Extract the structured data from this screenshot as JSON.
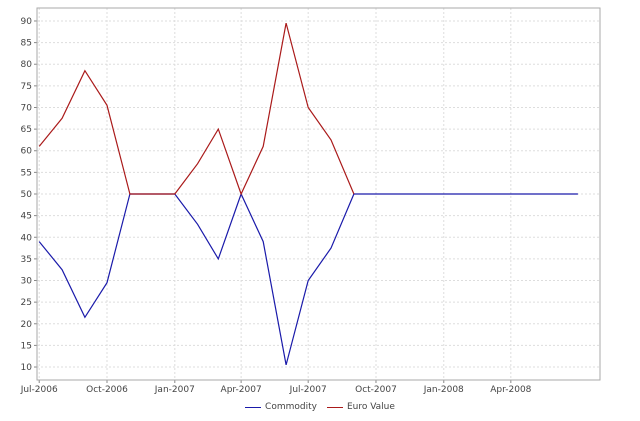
{
  "chart_data": {
    "type": "line",
    "title": "",
    "xlabel": "",
    "ylabel": "",
    "x_ticks": [
      "Jul-2006",
      "Oct-2006",
      "Jan-2007",
      "Apr-2007",
      "Jul-2007",
      "Oct-2007",
      "Jan-2008",
      "Apr-2008"
    ],
    "y_ticks": [
      10,
      15,
      20,
      25,
      30,
      35,
      40,
      45,
      50,
      55,
      60,
      65,
      70,
      75,
      80,
      85,
      90
    ],
    "xlim": [
      "2006-06-28",
      "2008-07-31"
    ],
    "ylim": [
      7,
      93
    ],
    "grid": true,
    "legend_position": "bottom",
    "x": [
      "2006-07-01",
      "2006-08-01",
      "2006-09-01",
      "2006-10-01",
      "2006-11-01",
      "2006-12-01",
      "2007-01-01",
      "2007-02-01",
      "2007-03-01",
      "2007-04-01",
      "2007-05-01",
      "2007-06-01",
      "2007-07-01",
      "2007-08-01",
      "2007-09-01",
      "2007-10-01",
      "2007-11-01",
      "2007-12-01",
      "2008-01-01",
      "2008-02-01",
      "2008-03-01",
      "2008-04-01",
      "2008-05-01",
      "2008-06-01",
      "2008-07-01"
    ],
    "series": [
      {
        "name": "Commodity",
        "color": "#1a1aaa",
        "values": [
          39,
          32.5,
          21.5,
          29.5,
          50,
          50,
          50,
          43,
          35,
          50,
          39,
          10.5,
          30,
          37.5,
          50,
          50,
          50,
          50,
          50,
          50,
          50,
          50,
          50,
          50,
          50
        ]
      },
      {
        "name": "Euro Value",
        "color": "#aa1a1a",
        "values": [
          61,
          67.5,
          78.5,
          70.5,
          50,
          50,
          50,
          57,
          65,
          50,
          61,
          89.5,
          70,
          62.5,
          50,
          null,
          null,
          null,
          null,
          null,
          null,
          null,
          null,
          null,
          null
        ]
      }
    ]
  }
}
